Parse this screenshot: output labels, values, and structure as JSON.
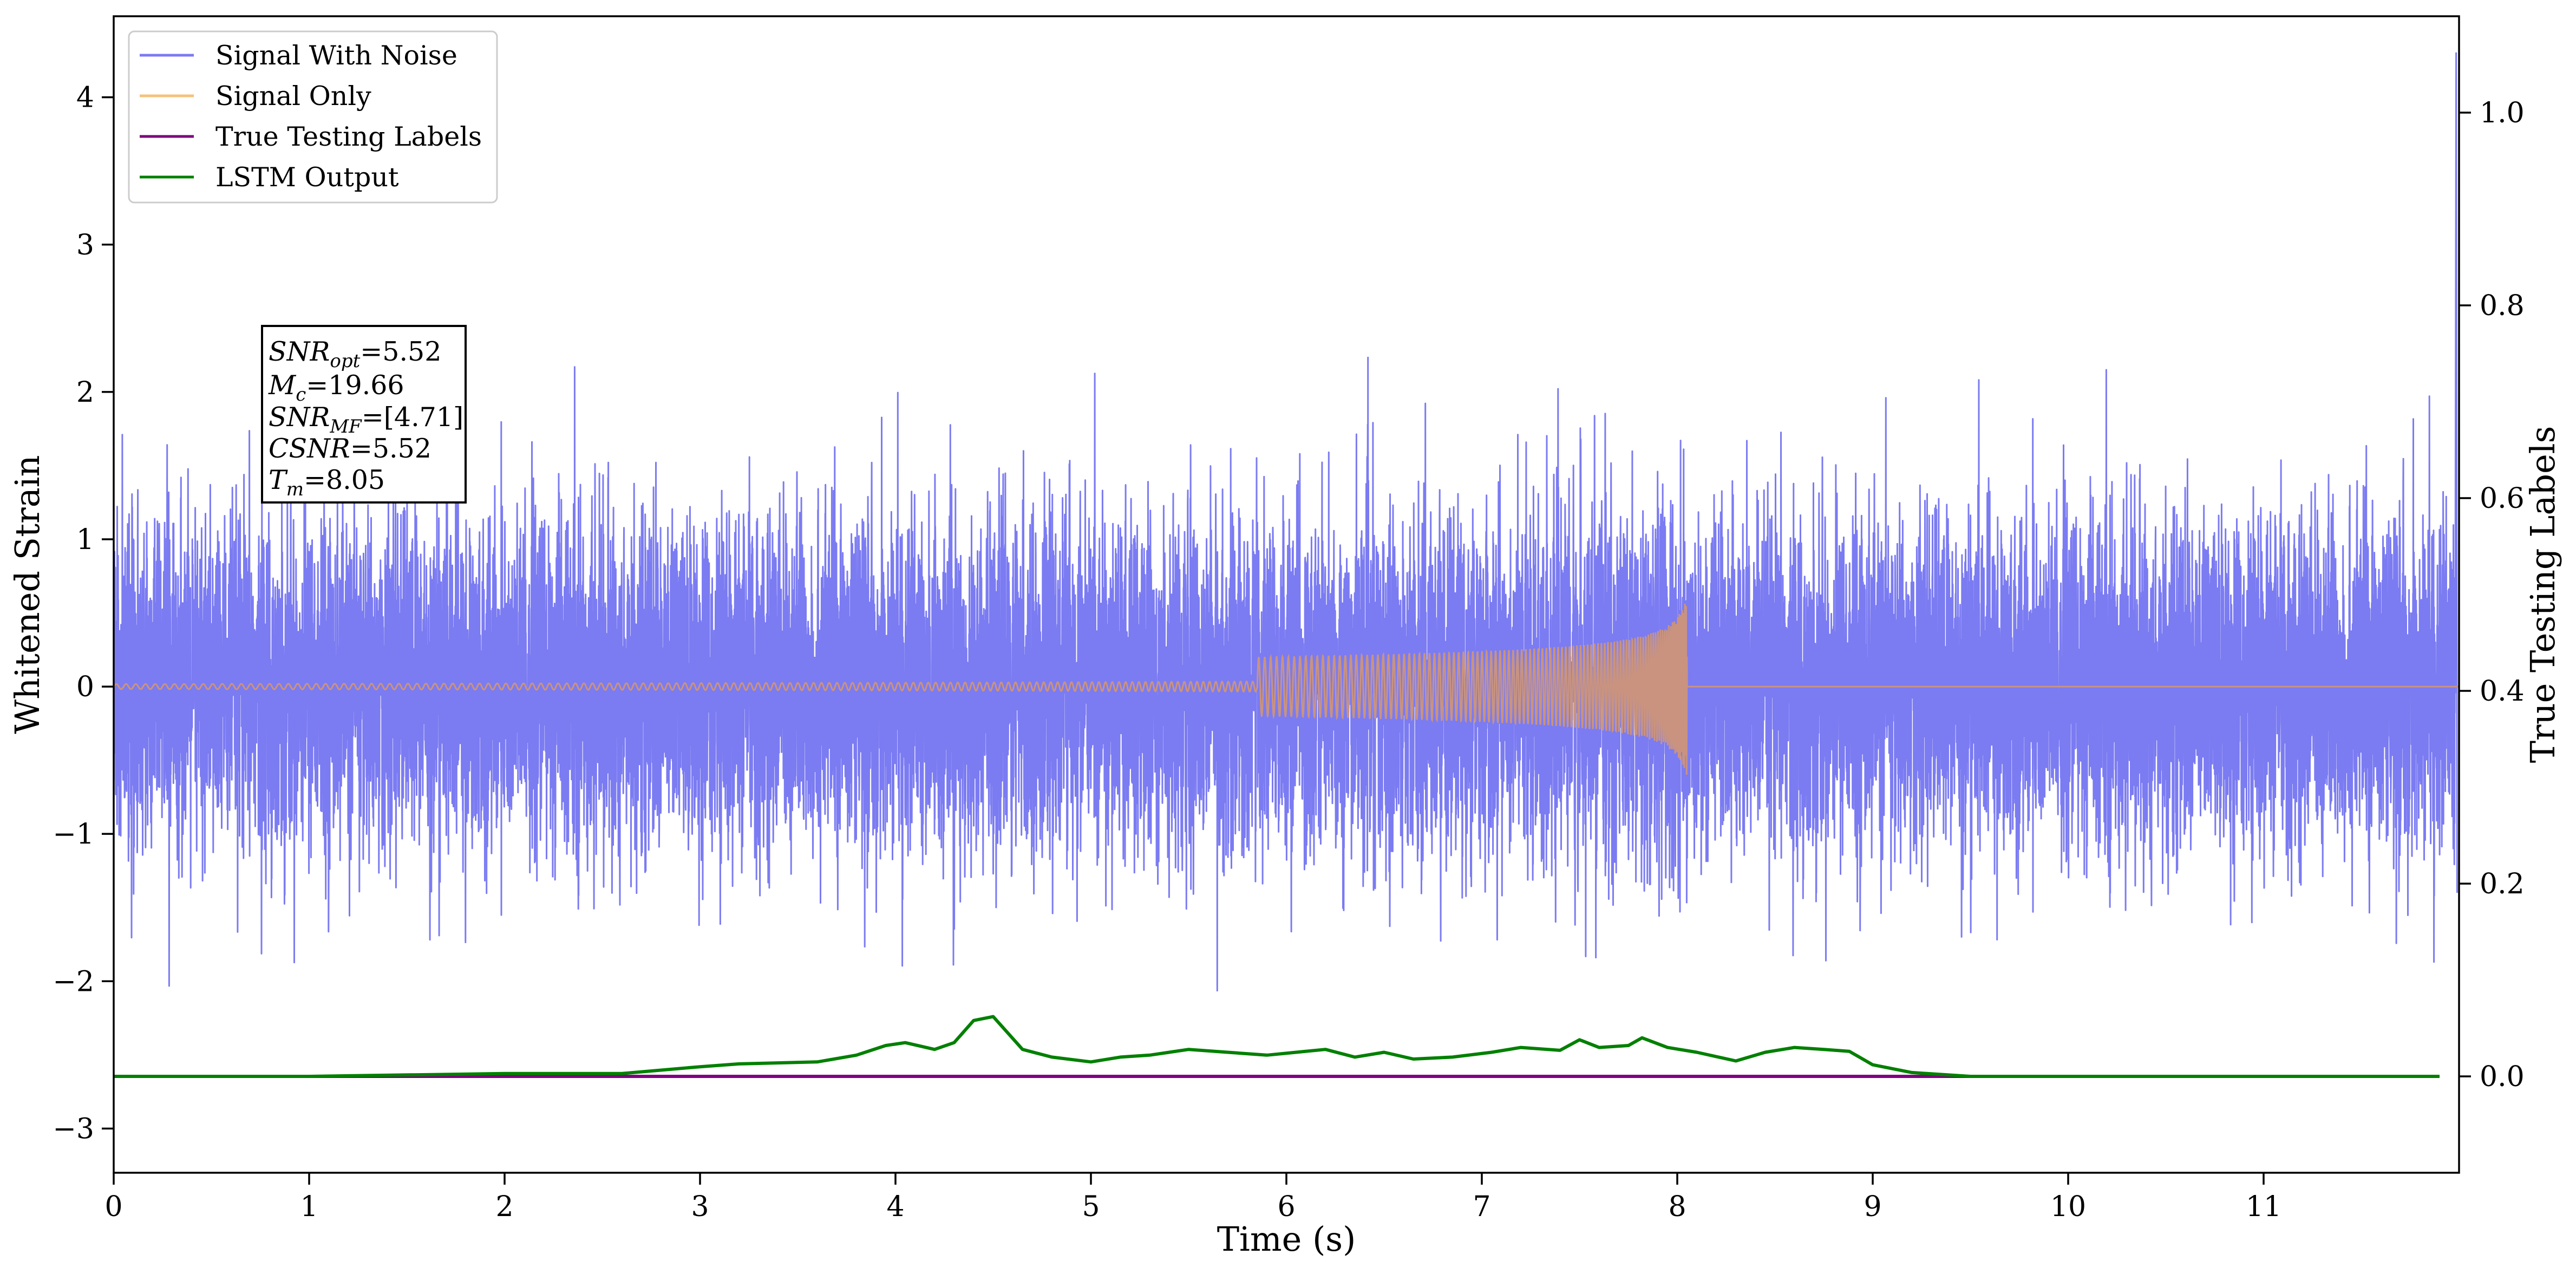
{
  "chart_data": {
    "type": "line",
    "xlabel": "Time (s)",
    "ylabel_left": "Whitened Strain",
    "ylabel_right": "True Testing Labels",
    "xlim": [
      0,
      12
    ],
    "ylim_left": [
      -3.3,
      4.55
    ],
    "ylim_right": [
      -0.1,
      1.1
    ],
    "x_ticks": [
      0,
      1,
      2,
      3,
      4,
      5,
      6,
      7,
      8,
      9,
      10,
      11
    ],
    "y_ticks_left": [
      -3,
      -2,
      -1,
      0,
      1,
      2,
      3,
      4
    ],
    "y_ticks_right": [
      0.0,
      0.2,
      0.4,
      0.6,
      0.8,
      1.0
    ],
    "x_tick_labels": [
      "0",
      "1",
      "2",
      "3",
      "4",
      "5",
      "6",
      "7",
      "8",
      "9",
      "10",
      "11"
    ],
    "y_tick_labels_left": [
      "−3",
      "−2",
      "−1",
      "0",
      "1",
      "2",
      "3",
      "4"
    ],
    "y_tick_labels_right": [
      "0.0",
      "0.2",
      "0.4",
      "0.6",
      "0.8",
      "1.0"
    ],
    "grid": false,
    "legend_position": "top-left",
    "series": [
      {
        "name": "Signal With Noise",
        "axis": "left",
        "color": "#7b7bf2",
        "description_stats": {
          "x_range": [
            0,
            12
          ],
          "approx_std": 0.55,
          "peak_max": 2.15,
          "peak_min": -2.07,
          "right_edge_spike": 4.3
        }
      },
      {
        "name": "Signal Only",
        "axis": "left",
        "color": "#f5b95a",
        "chirp": {
          "t_start": 0,
          "t_merge": 8.05,
          "peak_amplitude": 0.65,
          "post_merge": 0
        }
      },
      {
        "name": "True Testing Labels",
        "axis": "right",
        "color": "#800080",
        "x": [
          0,
          11.9
        ],
        "y": [
          0.0,
          0.0
        ]
      },
      {
        "name": "LSTM Output",
        "axis": "right",
        "color": "#008000",
        "x": [
          0,
          0.3,
          1.0,
          2.0,
          2.6,
          3.0,
          3.2,
          3.6,
          3.8,
          3.95,
          4.05,
          4.2,
          4.3,
          4.4,
          4.5,
          4.65,
          4.8,
          5.0,
          5.15,
          5.3,
          5.5,
          5.7,
          5.9,
          6.05,
          6.2,
          6.35,
          6.5,
          6.65,
          6.85,
          7.05,
          7.2,
          7.4,
          7.5,
          7.6,
          7.75,
          7.82,
          7.95,
          8.1,
          8.3,
          8.45,
          8.6,
          8.75,
          8.88,
          9.0,
          9.2,
          9.5,
          10.0,
          11.0,
          11.9
        ],
        "y": [
          0.0,
          0.0,
          0.0,
          0.003,
          0.003,
          0.01,
          0.013,
          0.015,
          0.022,
          0.032,
          0.035,
          0.028,
          0.035,
          0.058,
          0.062,
          0.028,
          0.02,
          0.015,
          0.02,
          0.022,
          0.028,
          0.025,
          0.022,
          0.025,
          0.028,
          0.02,
          0.025,
          0.018,
          0.02,
          0.025,
          0.03,
          0.027,
          0.038,
          0.03,
          0.032,
          0.04,
          0.03,
          0.025,
          0.016,
          0.025,
          0.03,
          0.028,
          0.026,
          0.012,
          0.004,
          0.0,
          0.0,
          0.0,
          0.0
        ]
      }
    ],
    "legend": [
      "Signal With Noise",
      "Signal Only",
      "True Testing Labels",
      "LSTM Output"
    ],
    "annotation": {
      "lines": [
        {
          "name": "SNR",
          "sub": "opt",
          "value": "=5.52"
        },
        {
          "name": "M",
          "sub": "c",
          "value": "=19.66"
        },
        {
          "name": "SNR",
          "sub": "MF",
          "value": "=[4.71]"
        },
        {
          "name": "CSNR",
          "sub": "",
          "value": "=5.52"
        },
        {
          "name": "T",
          "sub": "m",
          "value": "=8.05"
        }
      ]
    }
  },
  "colors": {
    "noise": "#7b7bf2",
    "signal": "#f5c27a",
    "signal_fill": "#c9937f",
    "labels": "#800080",
    "lstm": "#008000",
    "axes": "#000000"
  }
}
